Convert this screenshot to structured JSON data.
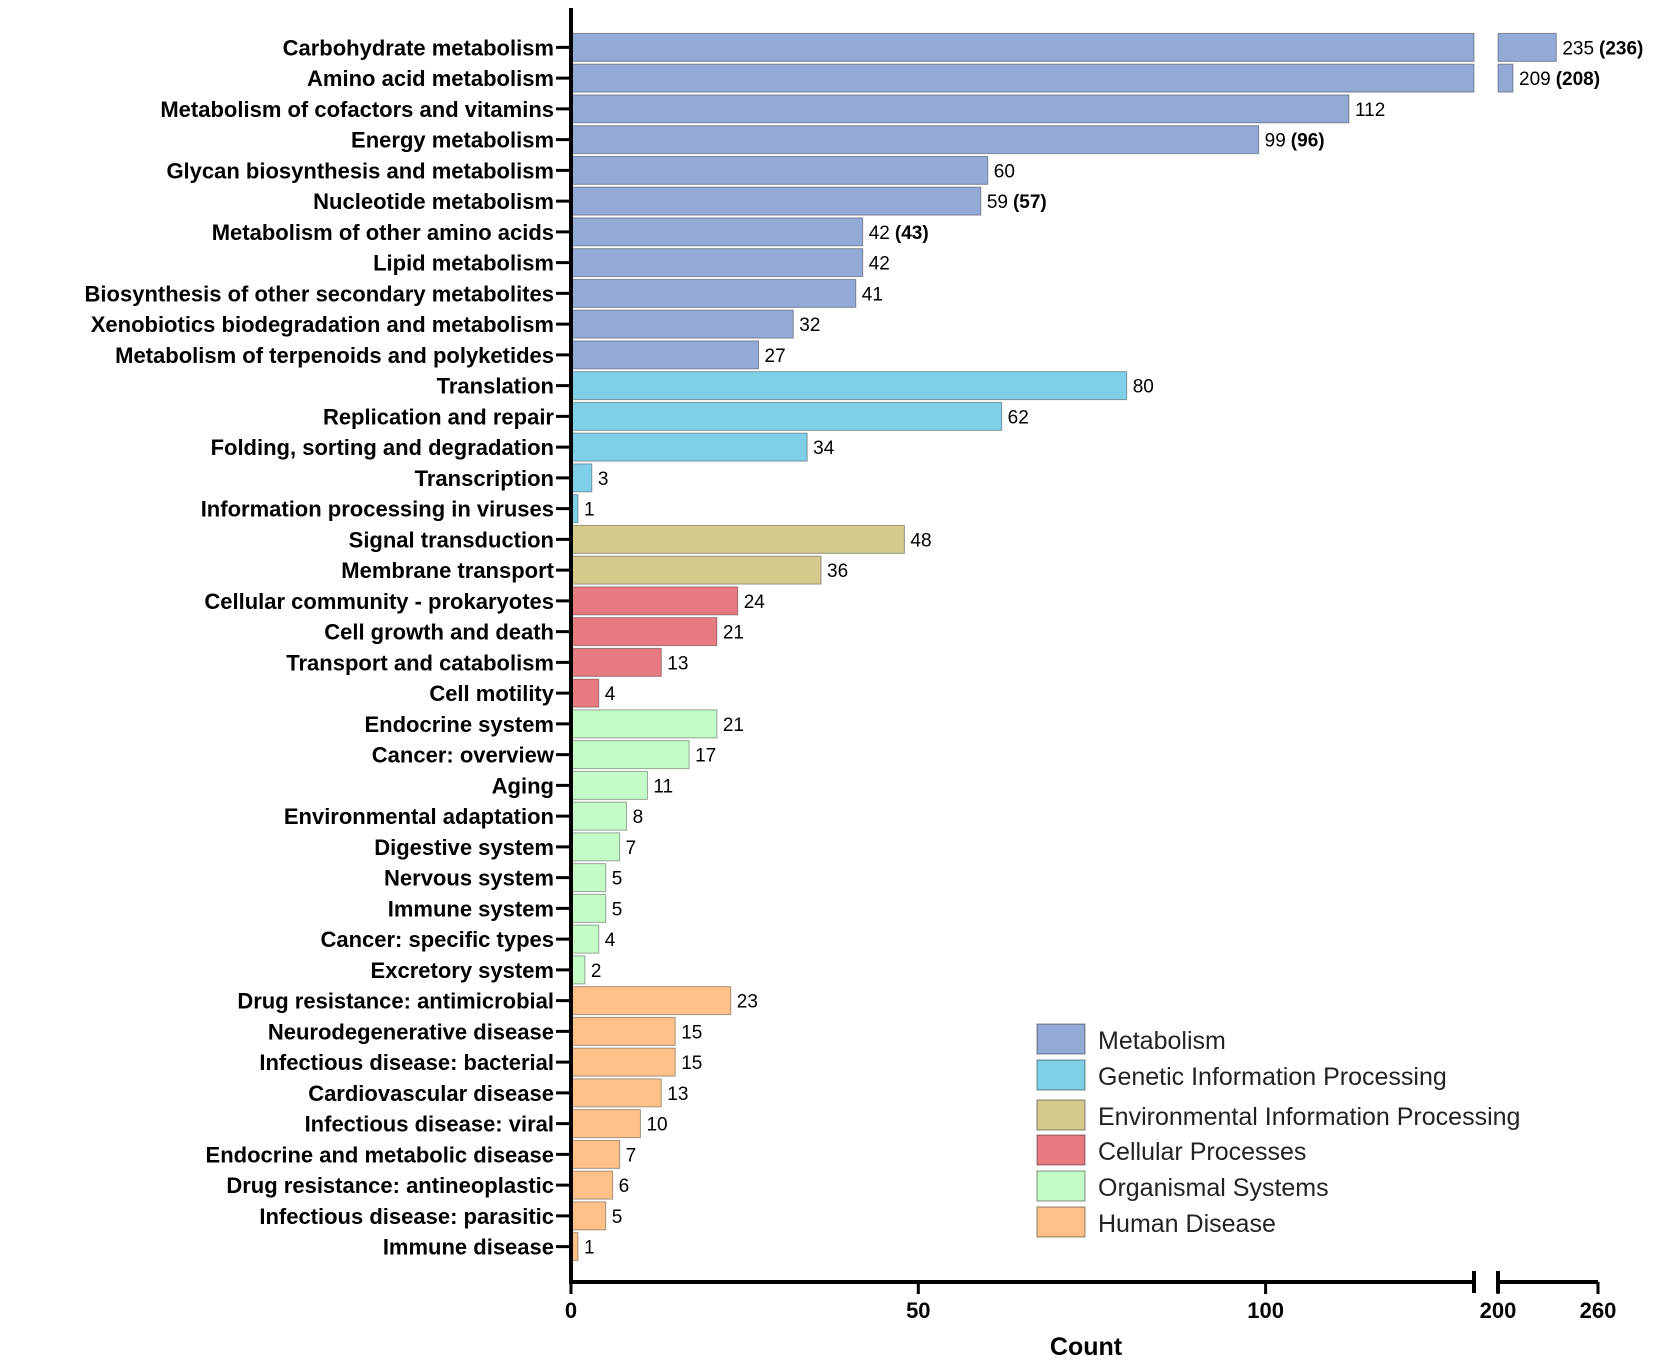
{
  "chart_data": {
    "type": "bar",
    "orientation": "horizontal",
    "xlabel": "Count",
    "xlim": [
      0,
      260
    ],
    "x_break": [
      130,
      200
    ],
    "x_ticks": [
      "0",
      "50",
      "100",
      "200",
      "260"
    ],
    "colors": {
      "Metabolism": "#93a9d6",
      "Genetic Information Processing": "#7fcfe8",
      "Environmental Information Processing": "#d4ca8c",
      "Cellular Processes": "#e87a82",
      "Organismal Systems": "#c4fcc8",
      "Human Disease": "#ffc187"
    },
    "legend": [
      "Metabolism",
      "Genetic Information Processing",
      "Environmental Information Processing",
      "Cellular Processes",
      "Organismal Systems",
      "Human Disease"
    ],
    "bars": [
      {
        "label": "Carbohydrate metabolism",
        "value": 235,
        "alt": "(236)",
        "group": "Metabolism"
      },
      {
        "label": "Amino acid metabolism",
        "value": 209,
        "alt": "(208)",
        "group": "Metabolism"
      },
      {
        "label": "Metabolism of cofactors and vitamins",
        "value": 112,
        "alt": "",
        "group": "Metabolism"
      },
      {
        "label": "Energy metabolism",
        "value": 99,
        "alt": "(96)",
        "group": "Metabolism"
      },
      {
        "label": "Glycan biosynthesis and metabolism",
        "value": 60,
        "alt": "",
        "group": "Metabolism"
      },
      {
        "label": "Nucleotide metabolism",
        "value": 59,
        "alt": "(57)",
        "group": "Metabolism"
      },
      {
        "label": "Metabolism of other amino acids",
        "value": 42,
        "alt": "(43)",
        "group": "Metabolism"
      },
      {
        "label": "Lipid metabolism",
        "value": 42,
        "alt": "",
        "group": "Metabolism"
      },
      {
        "label": "Biosynthesis of other secondary metabolites",
        "value": 41,
        "alt": "",
        "group": "Metabolism"
      },
      {
        "label": "Xenobiotics biodegradation and metabolism",
        "value": 32,
        "alt": "",
        "group": "Metabolism"
      },
      {
        "label": "Metabolism of terpenoids and polyketides",
        "value": 27,
        "alt": "",
        "group": "Metabolism"
      },
      {
        "label": "Translation",
        "value": 80,
        "alt": "",
        "group": "Genetic Information Processing"
      },
      {
        "label": "Replication and repair",
        "value": 62,
        "alt": "",
        "group": "Genetic Information Processing"
      },
      {
        "label": "Folding, sorting and degradation",
        "value": 34,
        "alt": "",
        "group": "Genetic Information Processing"
      },
      {
        "label": "Transcription",
        "value": 3,
        "alt": "",
        "group": "Genetic Information Processing"
      },
      {
        "label": "Information processing in viruses",
        "value": 1,
        "alt": "",
        "group": "Genetic Information Processing"
      },
      {
        "label": "Signal transduction",
        "value": 48,
        "alt": "",
        "group": "Environmental Information Processing"
      },
      {
        "label": "Membrane transport",
        "value": 36,
        "alt": "",
        "group": "Environmental Information Processing"
      },
      {
        "label": "Cellular community - prokaryotes",
        "value": 24,
        "alt": "",
        "group": "Cellular Processes"
      },
      {
        "label": "Cell growth and death",
        "value": 21,
        "alt": "",
        "group": "Cellular Processes"
      },
      {
        "label": "Transport and catabolism",
        "value": 13,
        "alt": "",
        "group": "Cellular Processes"
      },
      {
        "label": "Cell motility",
        "value": 4,
        "alt": "",
        "group": "Cellular Processes"
      },
      {
        "label": "Endocrine system",
        "value": 21,
        "alt": "",
        "group": "Organismal Systems"
      },
      {
        "label": "Cancer: overview",
        "value": 17,
        "alt": "",
        "group": "Organismal Systems"
      },
      {
        "label": "Aging",
        "value": 11,
        "alt": "",
        "group": "Organismal Systems"
      },
      {
        "label": "Environmental adaptation",
        "value": 8,
        "alt": "",
        "group": "Organismal Systems"
      },
      {
        "label": "Digestive system",
        "value": 7,
        "alt": "",
        "group": "Organismal Systems"
      },
      {
        "label": "Nervous system",
        "value": 5,
        "alt": "",
        "group": "Organismal Systems"
      },
      {
        "label": "Immune system",
        "value": 5,
        "alt": "",
        "group": "Organismal Systems"
      },
      {
        "label": "Cancer: specific types",
        "value": 4,
        "alt": "",
        "group": "Organismal Systems"
      },
      {
        "label": "Excretory system",
        "value": 2,
        "alt": "",
        "group": "Organismal Systems"
      },
      {
        "label": "Drug resistance: antimicrobial",
        "value": 23,
        "alt": "",
        "group": "Human Disease"
      },
      {
        "label": "Neurodegenerative disease",
        "value": 15,
        "alt": "",
        "group": "Human Disease"
      },
      {
        "label": "Infectious disease: bacterial",
        "value": 15,
        "alt": "",
        "group": "Human Disease"
      },
      {
        "label": "Cardiovascular disease",
        "value": 13,
        "alt": "",
        "group": "Human Disease"
      },
      {
        "label": "Infectious disease: viral",
        "value": 10,
        "alt": "",
        "group": "Human Disease"
      },
      {
        "label": "Endocrine and metabolic disease",
        "value": 7,
        "alt": "",
        "group": "Human Disease"
      },
      {
        "label": "Drug resistance: antineoplastic",
        "value": 6,
        "alt": "",
        "group": "Human Disease"
      },
      {
        "label": "Infectious disease: parasitic",
        "value": 5,
        "alt": "",
        "group": "Human Disease"
      },
      {
        "label": "Immune disease",
        "value": 1,
        "alt": "",
        "group": "Human Disease"
      }
    ]
  }
}
